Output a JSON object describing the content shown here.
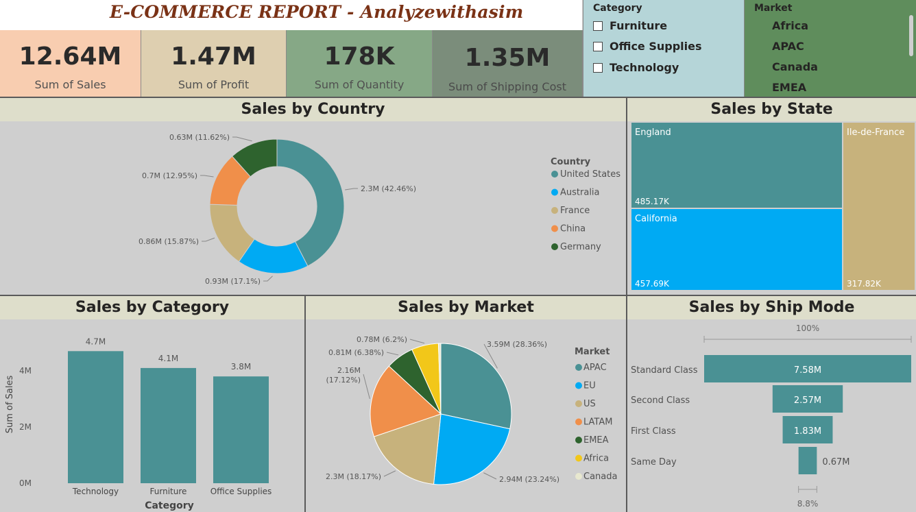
{
  "report": {
    "title": "E-COMMERCE REPORT - Analyzewithasim"
  },
  "kpis": [
    {
      "value": "12.64M",
      "label": "Sum of Sales",
      "bg": "#f8cdb0",
      "fg": "#505050"
    },
    {
      "value": "1.47M",
      "label": "Sum of Profit",
      "bg": "#decfb0",
      "fg": "#505050"
    },
    {
      "value": "178K",
      "label": "Sum of Quantity",
      "bg": "#86a886",
      "fg": "#505050"
    },
    {
      "value": "1.35M",
      "label": "Sum of Shipping Cost",
      "bg": "#7b8d7b",
      "fg": "#4a4a4a"
    }
  ],
  "category_slicer": {
    "title": "Category",
    "items": [
      "Furniture",
      "Office Supplies",
      "Technology"
    ],
    "bg": "#b5d5d8"
  },
  "market_slicer": {
    "title": "Market",
    "items": [
      "Africa",
      "APAC",
      "Canada",
      "EMEA"
    ],
    "bg": "#5f8d5c"
  },
  "colors": {
    "teal": "#4a9194",
    "blue": "#00aaf3",
    "tan": "#c7b27c",
    "orange": "#f08f4a",
    "darkgreen": "#2e632e",
    "yellow": "#f2c719",
    "cream": "#e8e8cf"
  },
  "panels": {
    "country_title": "Sales by Country",
    "state_title": "Sales by State",
    "category_title": "Sales by Category",
    "market_title": "Sales by Market",
    "shipmode_title": "Sales by Ship Mode"
  },
  "chart_data": [
    {
      "id": "country",
      "type": "pie",
      "donut": true,
      "title": "Sales by Country",
      "legend_title": "Country",
      "legend_position": "right",
      "slices": [
        {
          "name": "United States",
          "value": 2.3,
          "label": "2.3M (42.46%)",
          "color": "#4a9194"
        },
        {
          "name": "Australia",
          "value": 0.93,
          "label": "0.93M (17.1%)",
          "color": "#00aaf3"
        },
        {
          "name": "France",
          "value": 0.86,
          "label": "0.86M (15.87%)",
          "color": "#c7b27c"
        },
        {
          "name": "China",
          "value": 0.7,
          "label": "0.7M (12.95%)",
          "color": "#f08f4a"
        },
        {
          "name": "Germany",
          "value": 0.63,
          "label": "0.63M (11.62%)",
          "color": "#2e632e"
        }
      ]
    },
    {
      "id": "state",
      "type": "treemap",
      "title": "Sales by State",
      "items": [
        {
          "name": "England",
          "value": 485.17,
          "label": "485.17K",
          "color": "#4a9194"
        },
        {
          "name": "California",
          "value": 457.69,
          "label": "457.69K",
          "color": "#00aaf3"
        },
        {
          "name": "Ile-de-France",
          "value": 317.82,
          "label": "317.82K",
          "color": "#c7b27c"
        }
      ]
    },
    {
      "id": "category",
      "type": "bar",
      "title": "Sales by Category",
      "xlabel": "Category",
      "ylabel": "Sum of Sales",
      "ylim": [
        0,
        5
      ],
      "yticks": [
        {
          "v": 0,
          "label": "0M"
        },
        {
          "v": 2,
          "label": "2M"
        },
        {
          "v": 4,
          "label": "4M"
        }
      ],
      "categories": [
        "Technology",
        "Furniture",
        "Office Supplies"
      ],
      "values": [
        4.7,
        4.1,
        3.8
      ],
      "value_labels": [
        "4.7M",
        "4.1M",
        "3.8M"
      ],
      "color": "#4a9194"
    },
    {
      "id": "market",
      "type": "pie",
      "donut": false,
      "title": "Sales by Market",
      "legend_title": "Market",
      "legend_position": "right",
      "slices": [
        {
          "name": "APAC",
          "value": 3.59,
          "label": "3.59M (28.36%)",
          "color": "#4a9194"
        },
        {
          "name": "EU",
          "value": 2.94,
          "label": "2.94M (23.24%)",
          "color": "#00aaf3"
        },
        {
          "name": "US",
          "value": 2.3,
          "label": "2.3M (18.17%)",
          "color": "#c7b27c"
        },
        {
          "name": "LATAM",
          "value": 2.16,
          "label": "2.16M (17.12%)",
          "color": "#f08f4a"
        },
        {
          "name": "EMEA",
          "value": 0.81,
          "label": "0.81M (6.38%)",
          "color": "#2e632e"
        },
        {
          "name": "Africa",
          "value": 0.78,
          "label": "0.78M (6.2%)",
          "color": "#f2c719"
        },
        {
          "name": "Canada",
          "value": 0.07,
          "label": "",
          "color": "#e8e8cf"
        }
      ]
    },
    {
      "id": "shipmode",
      "type": "funnel",
      "title": "Sales by Ship Mode",
      "top_label": "100%",
      "bottom_label": "8.8%",
      "categories": [
        "Standard Class",
        "Second Class",
        "First Class",
        "Same Day"
      ],
      "values": [
        7.58,
        2.57,
        1.83,
        0.67
      ],
      "value_labels": [
        "7.58M",
        "2.57M",
        "1.83M",
        "0.67M"
      ],
      "color": "#4a9194"
    }
  ]
}
